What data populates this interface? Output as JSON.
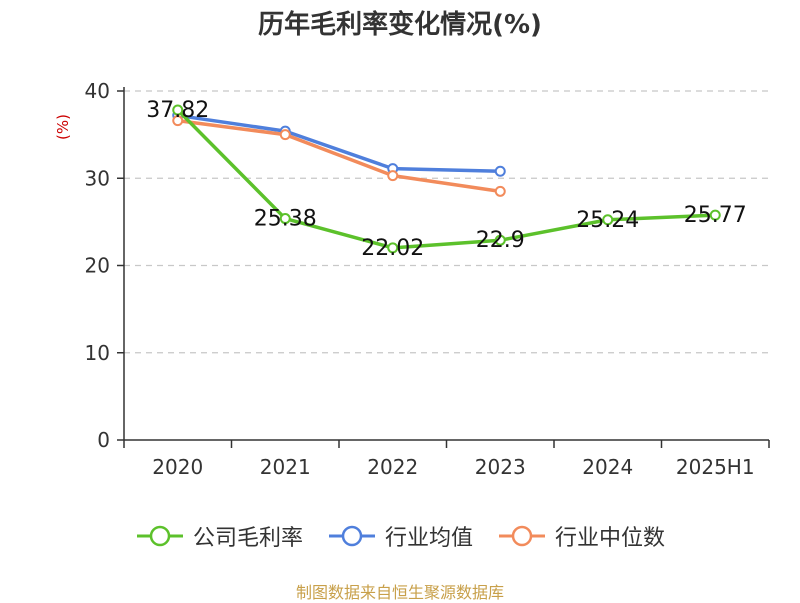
{
  "chart_data": {
    "type": "line",
    "title": "历年毛利率变化情况(%)",
    "ylabel": "(%)",
    "xlabel": "",
    "categories": [
      "2020",
      "2021",
      "2022",
      "2023",
      "2024",
      "2025H1"
    ],
    "ylim": [
      0,
      40
    ],
    "yticks": [
      0,
      10,
      20,
      30,
      40
    ],
    "grid": true,
    "legend_position": "bottom",
    "series": [
      {
        "name": "公司毛利率",
        "color": "#5cc12b",
        "values": [
          37.82,
          25.38,
          22.02,
          22.9,
          25.24,
          25.77
        ],
        "labels": [
          "37.82",
          "25.38",
          "22.02",
          "22.9",
          "25.24",
          "25.77"
        ]
      },
      {
        "name": "行业均值",
        "color": "#4f7fdc",
        "values": [
          37.2,
          35.4,
          31.1,
          30.8,
          null,
          null
        ]
      },
      {
        "name": "行业中位数",
        "color": "#f28b5b",
        "values": [
          36.6,
          35.0,
          30.3,
          28.5,
          null,
          null
        ]
      }
    ]
  },
  "source_note": "制图数据来自恒生聚源数据库"
}
